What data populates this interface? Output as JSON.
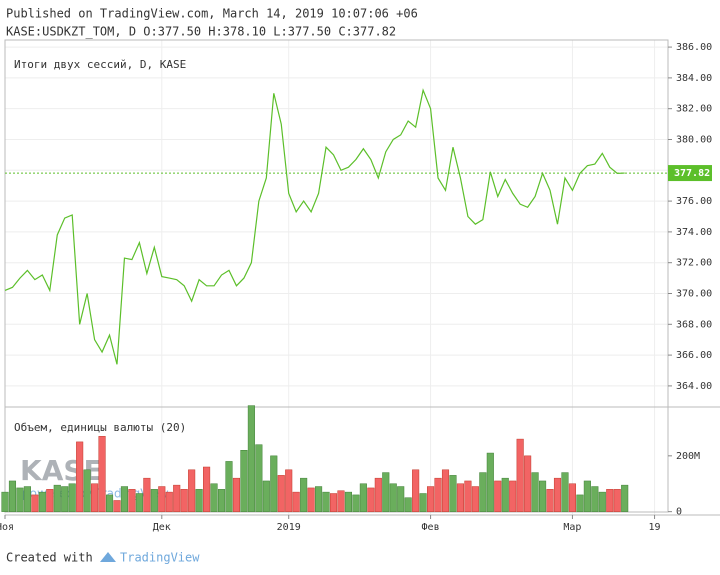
{
  "header": {
    "published": "Published on TradingView.com, March 14, 2019 10:07:06 +06",
    "symbol": "KASE:USDKZT_TOM, D O:377.50 H:378.10 L:377.50 C:377.82"
  },
  "footer": {
    "created": "Created with",
    "brand": "TradingView"
  },
  "watermark": {
    "logo": "KASE",
    "powered": "powered by TradingView"
  },
  "chart_data": [
    {
      "type": "line",
      "title": "Итоги двух сессий, D, KASE",
      "color": "#5cbf2a",
      "values": [
        370.2,
        370.4,
        371.0,
        371.5,
        370.9,
        371.2,
        370.2,
        373.8,
        374.9,
        375.1,
        368.0,
        370.0,
        367.0,
        366.2,
        367.3,
        365.4,
        372.3,
        372.2,
        373.3,
        371.3,
        373.0,
        371.1,
        371.0,
        370.9,
        370.5,
        369.5,
        370.9,
        370.5,
        370.5,
        371.2,
        371.5,
        370.5,
        371.0,
        372.0,
        376.0,
        377.5,
        383.0,
        381.0,
        376.5,
        375.3,
        376.0,
        375.3,
        376.5,
        379.5,
        379.0,
        378.0,
        378.2,
        378.7,
        379.4,
        378.7,
        377.5,
        379.2,
        380.0,
        380.3,
        381.2,
        380.8,
        383.2,
        382.0,
        377.5,
        376.7,
        379.5,
        377.5,
        375.0,
        374.5,
        374.8,
        377.9,
        376.3,
        377.4,
        376.5,
        375.8,
        375.6,
        376.3,
        377.8,
        376.7,
        374.5,
        377.5,
        376.7,
        377.8,
        378.3,
        378.4,
        379.1,
        378.2,
        377.8,
        377.82
      ],
      "xlim": [
        0,
        88.8
      ],
      "xticks": [
        {
          "value": 0,
          "label": "Ноя"
        },
        {
          "value": 21,
          "label": "Дек"
        },
        {
          "value": 38,
          "label": "2019"
        },
        {
          "value": 57,
          "label": "Фев"
        },
        {
          "value": 76,
          "label": "Мар"
        },
        {
          "value": 87,
          "label": "19"
        }
      ],
      "ylim": [
        362.63,
        386.46
      ],
      "yticks": [
        {
          "value": 364,
          "label": "364.00"
        },
        {
          "value": 366,
          "label": "366.00"
        },
        {
          "value": 368,
          "label": "368.00"
        },
        {
          "value": 370,
          "label": "370.00"
        },
        {
          "value": 372,
          "label": "372.00"
        },
        {
          "value": 374,
          "label": "374.00"
        },
        {
          "value": 376,
          "label": "376.00"
        },
        {
          "value": 378,
          "label": "378.00"
        },
        {
          "value": 380,
          "label": "380.00"
        },
        {
          "value": 382,
          "label": "382.00"
        },
        {
          "value": 384,
          "label": "384.00"
        },
        {
          "value": 386,
          "label": "386.00"
        }
      ],
      "grid": true
    },
    {
      "type": "bar",
      "title": "Объем, единицы валюты (20)",
      "up_color": "#6aae5c",
      "down_color": "#f26464",
      "values": [
        70,
        110,
        85,
        90,
        60,
        70,
        80,
        95,
        90,
        100,
        250,
        150,
        100,
        270,
        60,
        40,
        90,
        80,
        65,
        120,
        80,
        90,
        70,
        95,
        80,
        150,
        80,
        160,
        100,
        80,
        180,
        120,
        220,
        380,
        240,
        110,
        200,
        130,
        150,
        70,
        120,
        85,
        90,
        70,
        65,
        75,
        70,
        60,
        100,
        85,
        120,
        140,
        100,
        90,
        50,
        150,
        65,
        90,
        120,
        150,
        130,
        100,
        110,
        90,
        140,
        210,
        110,
        120,
        110,
        260,
        200,
        140,
        110,
        80,
        120,
        140,
        100,
        60,
        110,
        90,
        70,
        80,
        80,
        95
      ],
      "ylim": [
        -12,
        375
      ],
      "yticks": [
        0,
        {
          "value": 200,
          "label": "200M"
        }
      ]
    }
  ]
}
